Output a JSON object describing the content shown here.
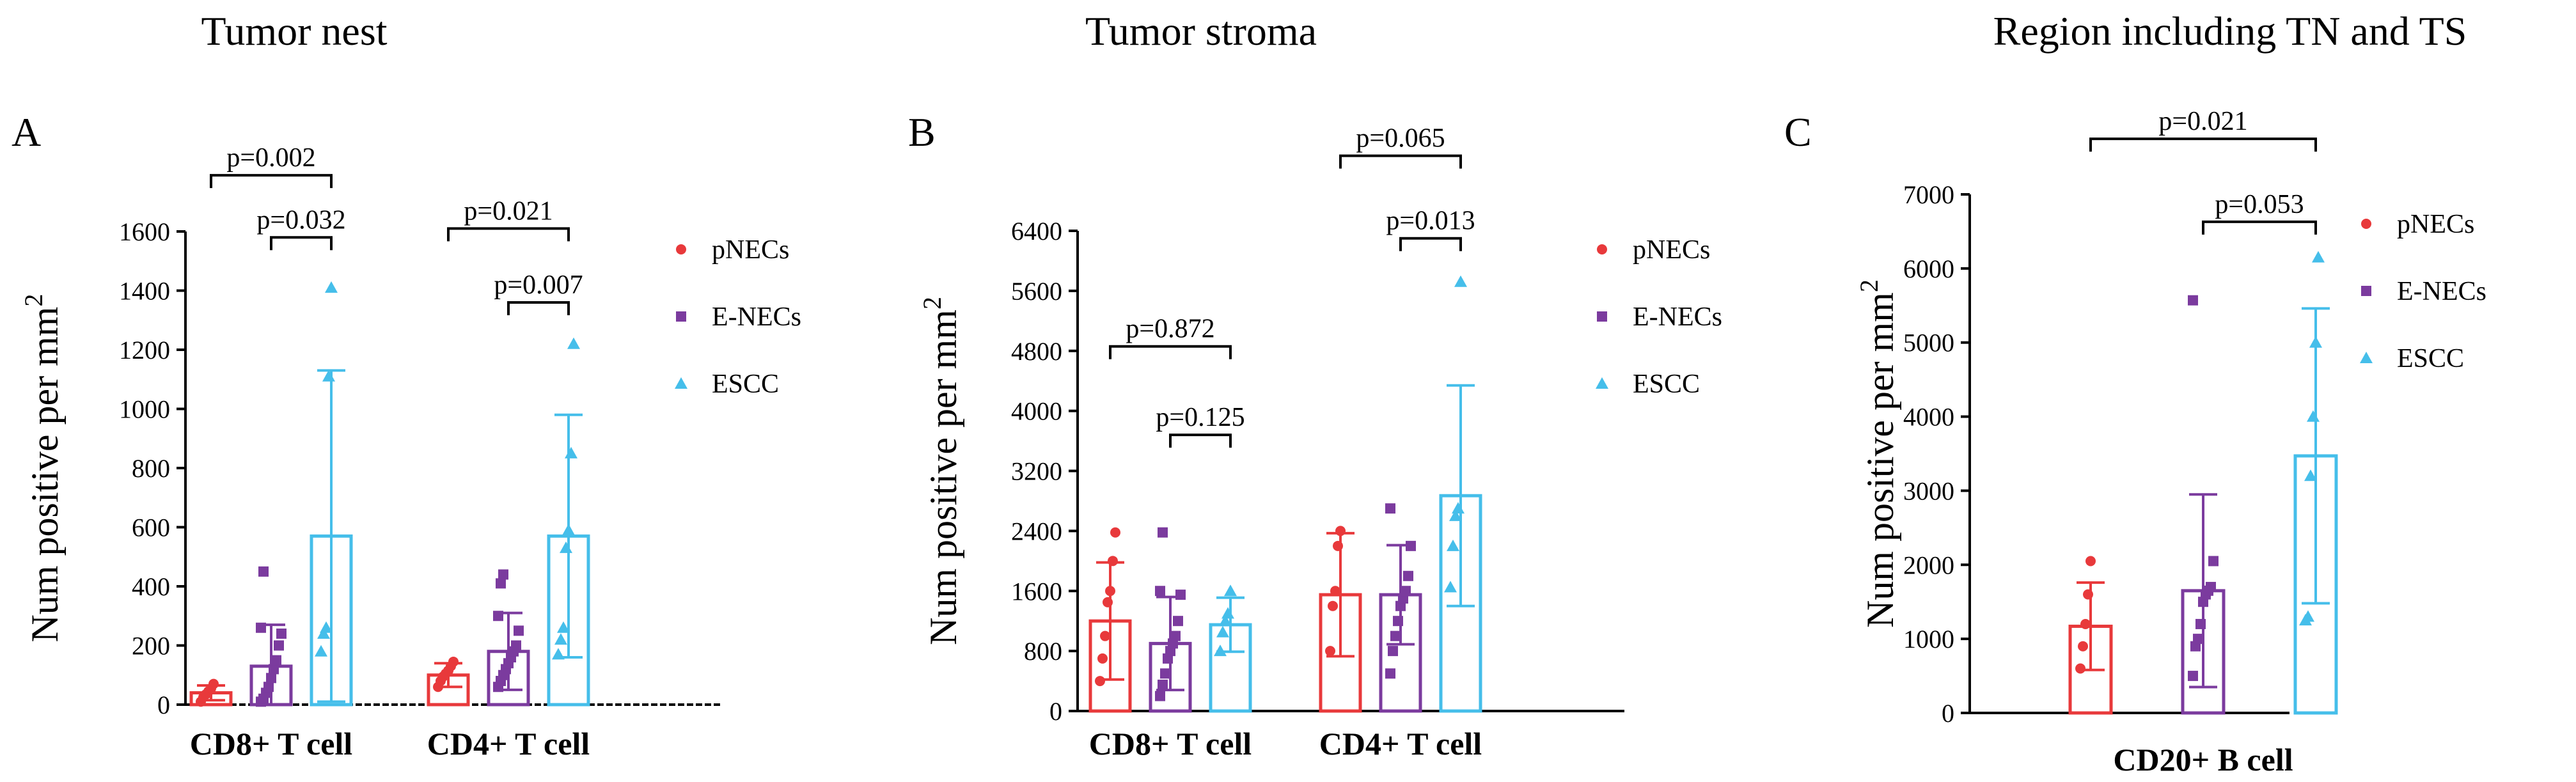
{
  "figure": {
    "panels": [
      {
        "id": "A",
        "title": "Tumor nest"
      },
      {
        "id": "B",
        "title": "Tumor stroma"
      },
      {
        "id": "C",
        "title": "Region  including TN and TS"
      }
    ]
  },
  "colors": {
    "pNECs": "#E8393B",
    "E-NECs": "#7B3B9E",
    "ESCC": "#45BEEA"
  },
  "chart_data": [
    {
      "type": "bar",
      "panel": "A",
      "title": "Tumor nest",
      "ylabel": "Num positive per mm",
      "ylabel_sup": "2",
      "ylim": [
        0,
        1600
      ],
      "yticks": [
        0,
        200,
        400,
        600,
        800,
        1000,
        1200,
        1400,
        1600
      ],
      "categories": [
        "CD8+ T cell",
        "CD4+ T cell"
      ],
      "legend": [
        "pNECs",
        "E-NECs",
        "ESCC"
      ],
      "series": [
        {
          "name": "pNECs",
          "marker": "circle",
          "values": [
            40,
            100
          ],
          "sd": [
            25,
            40
          ],
          "points": [
            [
              10,
              25,
              35,
              45,
              55,
              70
            ],
            [
              60,
              80,
              95,
              105,
              115,
              130,
              145
            ]
          ]
        },
        {
          "name": "E-NECs",
          "marker": "square",
          "values": [
            130,
            180
          ],
          "sd": [
            140,
            130
          ],
          "points": [
            [
              10,
              20,
              40,
              60,
              90,
              120,
              150,
              200,
              240,
              260,
              450
            ],
            [
              60,
              80,
              100,
              120,
              140,
              160,
              180,
              200,
              250,
              300,
              410,
              440
            ]
          ]
        },
        {
          "name": "ESCC",
          "marker": "triangle",
          "values": [
            570,
            570
          ],
          "sd": [
            560,
            410
          ],
          "points": [
            [
              180,
              240,
              260,
              1110,
              1410
            ],
            [
              170,
              220,
              260,
              530,
              590,
              850,
              1220
            ]
          ]
        }
      ],
      "comparisons": [
        {
          "label": "p=0.002",
          "from": [
            0,
            "pNECs"
          ],
          "to": [
            0,
            "ESCC"
          ],
          "y": 1790
        },
        {
          "label": "p=0.032",
          "from": [
            0,
            "E-NECs"
          ],
          "to": [
            0,
            "ESCC"
          ],
          "y": 1580
        },
        {
          "label": "p=0.021",
          "from": [
            1,
            "pNECs"
          ],
          "to": [
            1,
            "ESCC"
          ],
          "y": 1610
        },
        {
          "label": "p=0.007",
          "from": [
            1,
            "E-NECs"
          ],
          "to": [
            1,
            "ESCC"
          ],
          "y": 1360
        }
      ]
    },
    {
      "type": "bar",
      "panel": "B",
      "title": "Tumor stroma",
      "ylabel": "Num positive per mm",
      "ylabel_sup": "2",
      "ylim": [
        0,
        6400
      ],
      "yticks": [
        0,
        800,
        1600,
        2400,
        3200,
        4000,
        4800,
        5600,
        6400
      ],
      "categories": [
        "CD8+ T cell",
        "CD4+ T cell"
      ],
      "legend": [
        "pNECs",
        "E-NECs",
        "ESCC"
      ],
      "series": [
        {
          "name": "pNECs",
          "marker": "circle",
          "values": [
            1200,
            1550
          ],
          "sd": [
            780,
            820
          ],
          "points": [
            [
              400,
              700,
              1000,
              1450,
              1600,
              2000,
              2380
            ],
            [
              800,
              1400,
              1600,
              2200,
              2400
            ]
          ]
        },
        {
          "name": "E-NECs",
          "marker": "square",
          "values": [
            900,
            1550
          ],
          "sd": [
            620,
            660
          ],
          "points": [
            [
              200,
              350,
              500,
              700,
              800,
              900,
              1000,
              1200,
              1550,
              1600,
              2380
            ],
            [
              500,
              800,
              1000,
              1200,
              1400,
              1500,
              1600,
              1800,
              2200,
              2700
            ]
          ]
        },
        {
          "name": "ESCC",
          "marker": "triangle",
          "values": [
            1150,
            2870
          ],
          "sd": [
            360,
            1470
          ],
          "points": [
            [
              800,
              1050,
              1200,
              1300,
              1600
            ],
            [
              1650,
              2200,
              2600,
              2700,
              5720
            ]
          ]
        }
      ],
      "comparisons": [
        {
          "label": "p=0.872",
          "from": [
            0,
            "pNECs"
          ],
          "to": [
            0,
            "ESCC"
          ],
          "y": 4860
        },
        {
          "label": "p=0.125",
          "from": [
            0,
            "E-NECs"
          ],
          "to": [
            0,
            "ESCC"
          ],
          "y": 3680
        },
        {
          "label": "p=0.065",
          "from": [
            1,
            "pNECs"
          ],
          "to": [
            1,
            "ESCC"
          ],
          "y": 7400
        },
        {
          "label": "p=0.013",
          "from": [
            1,
            "E-NECs"
          ],
          "to": [
            1,
            "ESCC"
          ],
          "y": 6300
        }
      ]
    },
    {
      "type": "bar",
      "panel": "C",
      "title": "Region  including TN and TS",
      "ylabel": "Num positive per mm",
      "ylabel_sup": "2",
      "ylim": [
        0,
        7000
      ],
      "yticks": [
        0,
        1000,
        2000,
        3000,
        4000,
        5000,
        6000,
        7000
      ],
      "categories": [
        "CD20+ B cell"
      ],
      "legend": [
        "pNECs",
        "E-NECs",
        "ESCC"
      ],
      "series": [
        {
          "name": "pNECs",
          "marker": "circle",
          "values": [
            1170
          ],
          "sd": [
            590
          ],
          "points": [
            [
              600,
              900,
              1200,
              1600,
              2050
            ]
          ]
        },
        {
          "name": "E-NECs",
          "marker": "square",
          "values": [
            1650
          ],
          "sd": [
            1300
          ],
          "points": [
            [
              500,
              900,
              1000,
              1200,
              1500,
              1600,
              1650,
              1700,
              2050,
              5570
            ]
          ]
        },
        {
          "name": "ESCC",
          "marker": "triangle",
          "values": [
            3470
          ],
          "sd": [
            1990
          ],
          "points": [
            [
              1250,
              1300,
              3200,
              4000,
              5000,
              6150
            ]
          ]
        }
      ],
      "comparisons": [
        {
          "label": "p=0.021",
          "from": [
            0,
            "pNECs"
          ],
          "to": [
            0,
            "ESCC"
          ],
          "y": 7750
        },
        {
          "label": "p=0.053",
          "from": [
            0,
            "E-NECs"
          ],
          "to": [
            0,
            "ESCC"
          ],
          "y": 6630
        }
      ]
    }
  ]
}
